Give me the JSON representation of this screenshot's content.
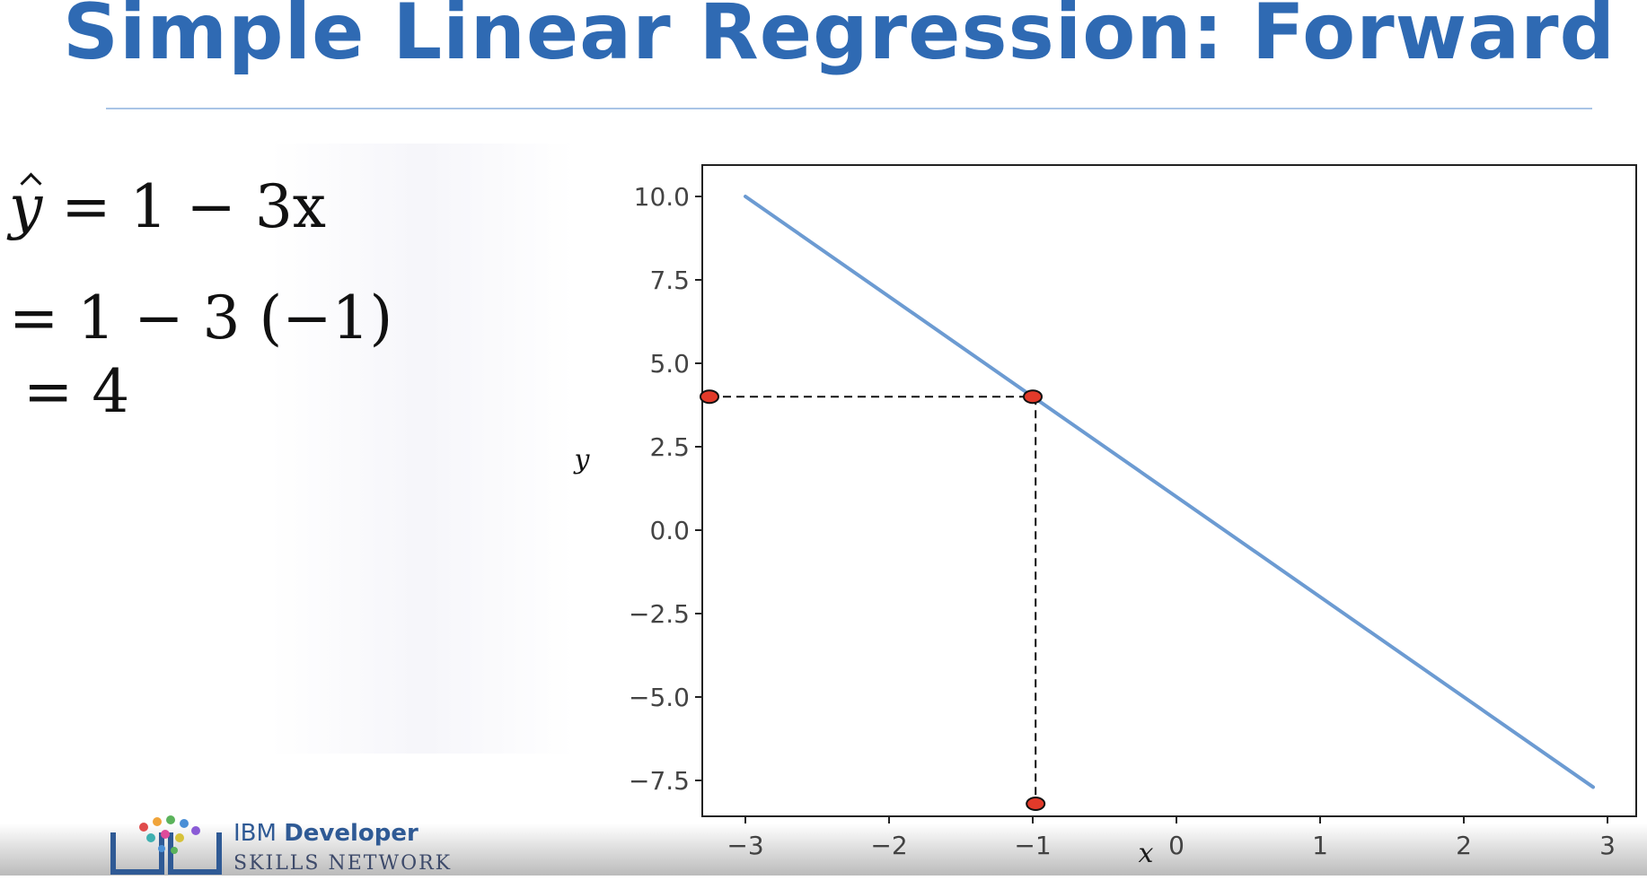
{
  "slide": {
    "title": "Simple Linear Regression: Forward",
    "equation_line1_lhs": "y",
    "equation_line1_rhs": "= 1 − 3x",
    "equation_line2": "= 1 − 3 (−1)",
    "equation_line3": "= 4"
  },
  "logo": {
    "brand_prefix": "IBM ",
    "brand_main": "Developer",
    "subtitle": "SKILLS NETWORK"
  },
  "colors": {
    "title": "#2f6ab3",
    "line": "#6c9bd2",
    "marker_fill": "#e23a2a",
    "dash": "#111111"
  },
  "chart_data": {
    "type": "line",
    "xlabel": "x",
    "ylabel": "y",
    "xlim": [
      -3.1,
      3.1
    ],
    "ylim": [
      -8.5,
      11
    ],
    "xticks": [
      -3,
      -2,
      -1,
      0,
      1,
      2,
      3
    ],
    "xtick_labels": [
      "−3",
      "−2",
      "−1",
      "0",
      "1",
      "2",
      "3"
    ],
    "yticks": [
      10.0,
      7.5,
      5.0,
      2.5,
      0.0,
      -2.5,
      -5.0,
      -7.5
    ],
    "ytick_labels": [
      "10.0",
      "7.5",
      "5.0",
      "2.5",
      "0.0",
      "−2.5",
      "−5.0",
      "−7.5"
    ],
    "series": [
      {
        "x": [
          -3,
          2.9
        ],
        "y": [
          10,
          -7.7
        ]
      }
    ],
    "highlight_points": [
      {
        "x": -3.25,
        "y": 4
      },
      {
        "x": -1,
        "y": 4
      },
      {
        "x": -0.98,
        "y": -8.2
      }
    ],
    "guide_lines": [
      {
        "from": [
          -3.25,
          4
        ],
        "to": [
          -1,
          4
        ]
      },
      {
        "from": [
          -0.98,
          4
        ],
        "to": [
          -0.98,
          -8.2
        ]
      }
    ],
    "grid": false
  }
}
